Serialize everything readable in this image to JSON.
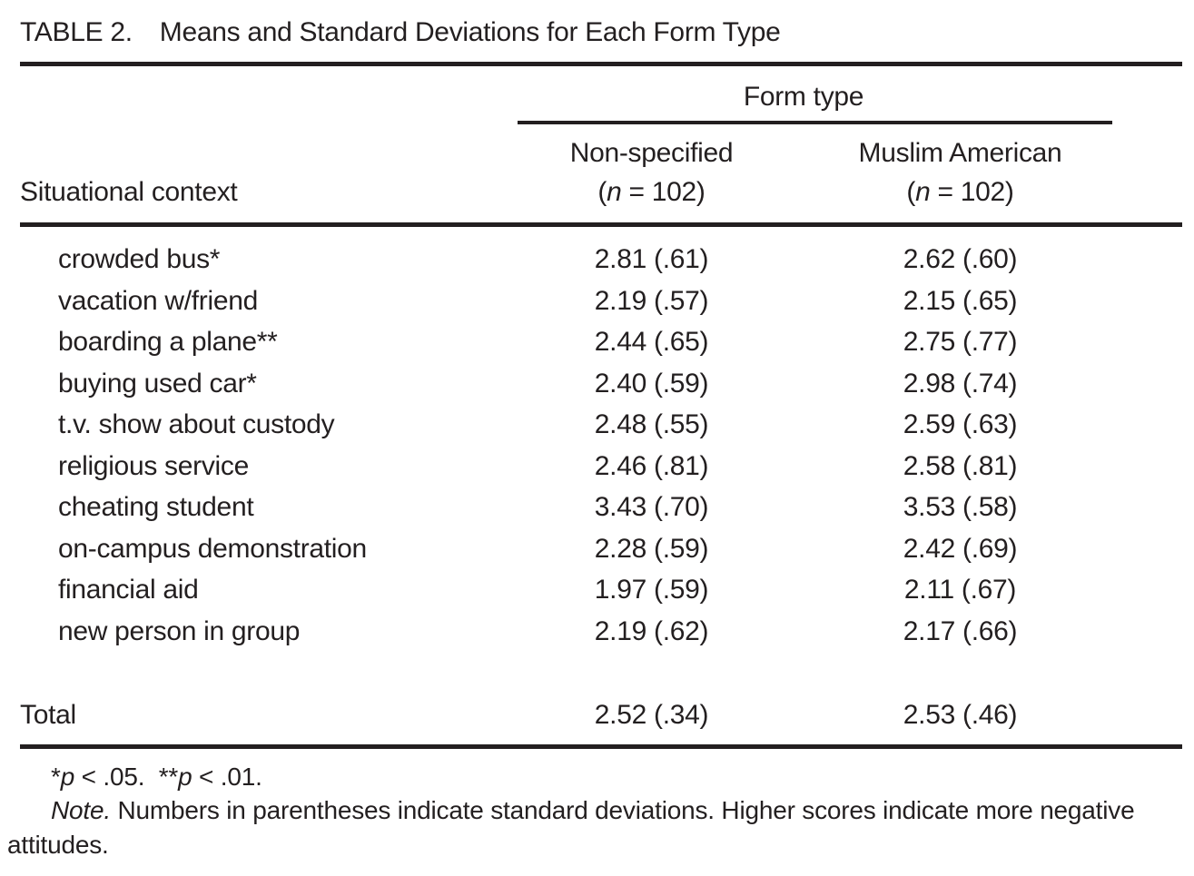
{
  "table": {
    "number_label": "TABLE 2.",
    "title": "Means and Standard Deviations for Each Form Type",
    "spanner_label": "Form type",
    "stub_header": "Situational context",
    "columns": [
      {
        "label": "Non-specified",
        "n_open": "(",
        "n_var": "n",
        "n_rest": " = 102)"
      },
      {
        "label": "Muslim American",
        "n_open": "(",
        "n_var": "n",
        "n_rest": " = 102)"
      }
    ],
    "rows": [
      {
        "label": "crowded bus*",
        "values": [
          "2.81 (.61)",
          "2.62 (.60)"
        ]
      },
      {
        "label": "vacation w/friend",
        "values": [
          "2.19 (.57)",
          "2.15 (.65)"
        ]
      },
      {
        "label": "boarding a plane**",
        "values": [
          "2.44 (.65)",
          "2.75 (.77)"
        ]
      },
      {
        "label": "buying used car*",
        "values": [
          "2.40 (.59)",
          "2.98 (.74)"
        ]
      },
      {
        "label": "t.v. show about custody",
        "values": [
          "2.48 (.55)",
          "2.59 (.63)"
        ]
      },
      {
        "label": "religious service",
        "values": [
          "2.46 (.81)",
          "2.58 (.81)"
        ]
      },
      {
        "label": "cheating student",
        "values": [
          "3.43 (.70)",
          "3.53 (.58)"
        ]
      },
      {
        "label": "on-campus demonstration",
        "values": [
          "2.28 (.59)",
          "2.42 (.69)"
        ]
      },
      {
        "label": "financial aid",
        "values": [
          "1.97 (.59)",
          "2.11 (.67)"
        ]
      },
      {
        "label": "new person in group",
        "values": [
          "2.19 (.62)",
          "2.17 (.66)"
        ]
      }
    ],
    "total": {
      "label": "Total",
      "values": [
        "2.52 (.34)",
        "2.53 (.46)"
      ]
    },
    "footnotes": {
      "sig": {
        "star1": "*",
        "p1": "p",
        "rest1": " < .05.",
        "star2": "**",
        "p2": "p",
        "rest2": " < .01."
      },
      "note_label": "Note.",
      "note_text": " Numbers in parentheses indicate standard deviations. Higher scores indicate more negative attitudes."
    },
    "colors": {
      "text": "#231f20",
      "background": "#ffffff",
      "rule": "#231f20"
    }
  }
}
